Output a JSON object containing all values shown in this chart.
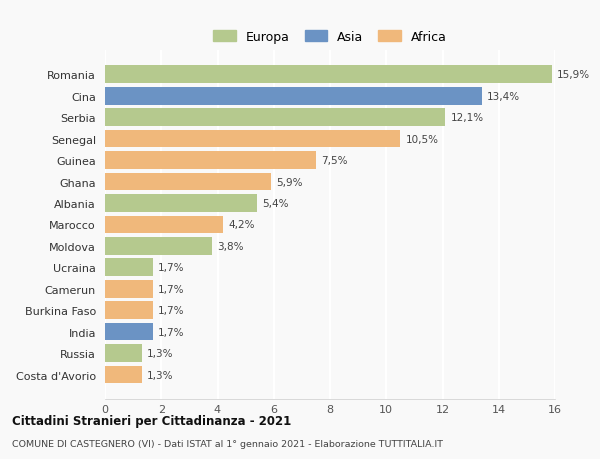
{
  "countries": [
    "Costa d'Avorio",
    "Russia",
    "India",
    "Burkina Faso",
    "Camerun",
    "Ucraina",
    "Moldova",
    "Marocco",
    "Albania",
    "Ghana",
    "Guinea",
    "Senegal",
    "Serbia",
    "Cina",
    "Romania"
  ],
  "values": [
    1.3,
    1.3,
    1.7,
    1.7,
    1.7,
    1.7,
    3.8,
    4.2,
    5.4,
    5.9,
    7.5,
    10.5,
    12.1,
    13.4,
    15.9
  ],
  "labels": [
    "1,3%",
    "1,3%",
    "1,7%",
    "1,7%",
    "1,7%",
    "1,7%",
    "3,8%",
    "4,2%",
    "5,4%",
    "5,9%",
    "7,5%",
    "10,5%",
    "12,1%",
    "13,4%",
    "15,9%"
  ],
  "continents": [
    "Africa",
    "Europa",
    "Asia",
    "Africa",
    "Africa",
    "Europa",
    "Europa",
    "Africa",
    "Europa",
    "Africa",
    "Africa",
    "Africa",
    "Europa",
    "Asia",
    "Europa"
  ],
  "colors": {
    "Europa": "#b5c98e",
    "Asia": "#6b93c4",
    "Africa": "#f0b87b"
  },
  "legend": [
    "Europa",
    "Asia",
    "Africa"
  ],
  "legend_colors": [
    "#b5c98e",
    "#6b93c4",
    "#f0b87b"
  ],
  "title1": "Cittadini Stranieri per Cittadinanza - 2021",
  "title2": "COMUNE DI CASTEGNERO (VI) - Dati ISTAT al 1° gennaio 2021 - Elaborazione TUTTITALIA.IT",
  "xlim": [
    0,
    16
  ],
  "xticks": [
    0,
    2,
    4,
    6,
    8,
    10,
    12,
    14,
    16
  ],
  "background_color": "#f9f9f9",
  "grid_color": "#ffffff",
  "bar_height": 0.82
}
